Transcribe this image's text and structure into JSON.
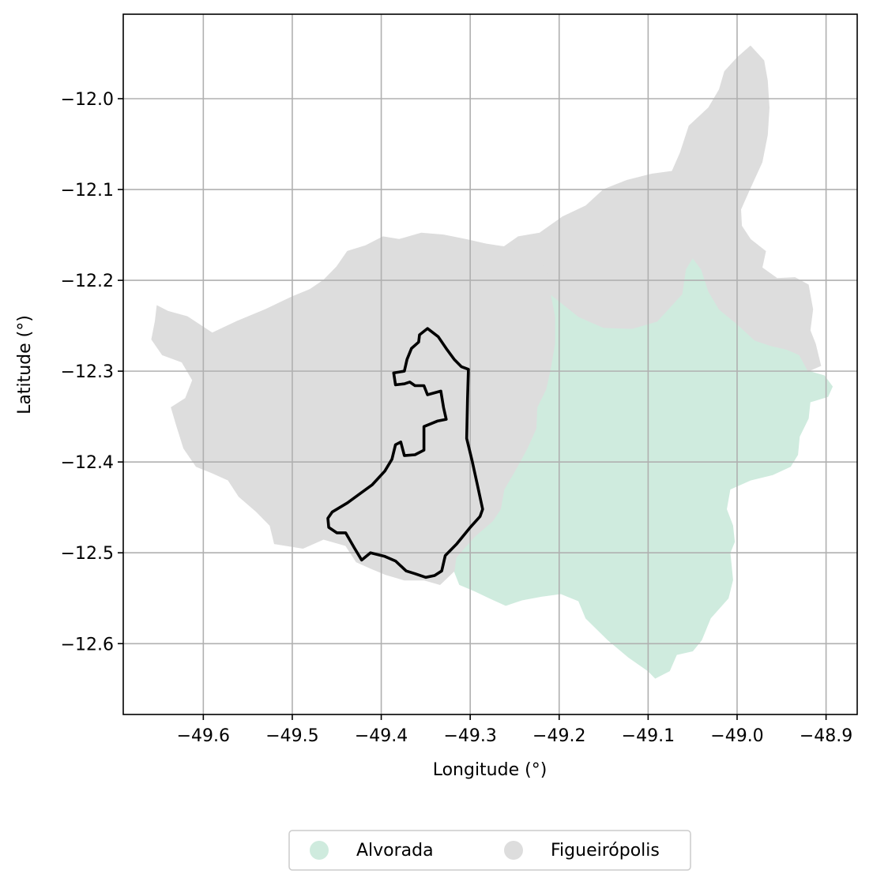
{
  "chart_data": {
    "type": "map",
    "xlabel": "Longitude (°)",
    "ylabel": "Latitude (°)",
    "xlim": [
      -49.69,
      -48.865
    ],
    "ylim": [
      -12.678,
      -11.907
    ],
    "x_ticks": [
      -49.6,
      -49.5,
      -49.4,
      -49.3,
      -49.2,
      -49.1,
      -49.0,
      -48.9
    ],
    "x_tick_labels": [
      "−49.6",
      "−49.5",
      "−49.4",
      "−49.3",
      "−49.2",
      "−49.1",
      "−49.0",
      "−48.9"
    ],
    "y_ticks": [
      -12.0,
      -12.1,
      -12.2,
      -12.3,
      -12.4,
      -12.5,
      -12.6
    ],
    "y_tick_labels": [
      "−12.0",
      "−12.1",
      "−12.2",
      "−12.3",
      "−12.4",
      "−12.5",
      "−12.6"
    ],
    "grid": true,
    "legend_position": "bottom-center",
    "regions": [
      {
        "name": "Alvorada",
        "color": "#cfebde",
        "polygon": [
          [
            -49.216,
            -12.193
          ],
          [
            -49.204,
            -12.207
          ],
          [
            -49.196,
            -12.225
          ],
          [
            -49.178,
            -12.24
          ],
          [
            -49.15,
            -12.252
          ],
          [
            -49.118,
            -12.253
          ],
          [
            -49.09,
            -12.245
          ],
          [
            -49.062,
            -12.215
          ],
          [
            -49.058,
            -12.188
          ],
          [
            -49.05,
            -12.175
          ],
          [
            -49.04,
            -12.188
          ],
          [
            -49.032,
            -12.212
          ],
          [
            -49.02,
            -12.232
          ],
          [
            -49.0,
            -12.248
          ],
          [
            -48.98,
            -12.266
          ],
          [
            -48.962,
            -12.272
          ],
          [
            -48.944,
            -12.276
          ],
          [
            -48.93,
            -12.282
          ],
          [
            -48.92,
            -12.3
          ],
          [
            -48.902,
            -12.305
          ],
          [
            -48.893,
            -12.317
          ],
          [
            -48.898,
            -12.328
          ],
          [
            -48.918,
            -12.334
          ],
          [
            -48.92,
            -12.352
          ],
          [
            -48.93,
            -12.372
          ],
          [
            -48.932,
            -12.392
          ],
          [
            -48.94,
            -12.405
          ],
          [
            -48.96,
            -12.414
          ],
          [
            -48.985,
            -12.42
          ],
          [
            -49.008,
            -12.43
          ],
          [
            -49.012,
            -12.452
          ],
          [
            -49.005,
            -12.47
          ],
          [
            -49.003,
            -12.488
          ],
          [
            -49.008,
            -12.5
          ],
          [
            -49.005,
            -12.53
          ],
          [
            -49.01,
            -12.55
          ],
          [
            -49.03,
            -12.572
          ],
          [
            -49.04,
            -12.596
          ],
          [
            -49.05,
            -12.608
          ],
          [
            -49.068,
            -12.612
          ],
          [
            -49.076,
            -12.63
          ],
          [
            -49.092,
            -12.638
          ],
          [
            -49.1,
            -12.63
          ],
          [
            -49.122,
            -12.615
          ],
          [
            -49.145,
            -12.596
          ],
          [
            -49.17,
            -12.572
          ],
          [
            -49.178,
            -12.553
          ],
          [
            -49.198,
            -12.545
          ],
          [
            -49.22,
            -12.548
          ],
          [
            -49.242,
            -12.552
          ],
          [
            -49.26,
            -12.558
          ],
          [
            -49.278,
            -12.55
          ],
          [
            -49.295,
            -12.542
          ],
          [
            -49.312,
            -12.535
          ],
          [
            -49.318,
            -12.52
          ],
          [
            -49.316,
            -12.505
          ],
          [
            -49.295,
            -12.482
          ],
          [
            -49.275,
            -12.465
          ],
          [
            -49.266,
            -12.452
          ],
          [
            -49.262,
            -12.43
          ],
          [
            -49.25,
            -12.41
          ],
          [
            -49.236,
            -12.385
          ],
          [
            -49.226,
            -12.363
          ],
          [
            -49.225,
            -12.34
          ],
          [
            -49.215,
            -12.32
          ],
          [
            -49.21,
            -12.298
          ],
          [
            -49.205,
            -12.27
          ],
          [
            -49.205,
            -12.24
          ],
          [
            -49.21,
            -12.215
          ]
        ]
      },
      {
        "name": "Figueirópolis",
        "color": "#dddddd",
        "polygon": [
          [
            -49.21,
            -12.216
          ],
          [
            -49.212,
            -12.196
          ],
          [
            -49.22,
            -12.178
          ],
          [
            -49.24,
            -12.168
          ],
          [
            -49.262,
            -12.163
          ],
          [
            -49.282,
            -12.16
          ],
          [
            -49.305,
            -12.155
          ],
          [
            -49.33,
            -12.15
          ],
          [
            -49.355,
            -12.148
          ],
          [
            -49.38,
            -12.155
          ],
          [
            -49.398,
            -12.152
          ],
          [
            -49.418,
            -12.162
          ],
          [
            -49.438,
            -12.168
          ],
          [
            -49.45,
            -12.185
          ],
          [
            -49.465,
            -12.2
          ],
          [
            -49.48,
            -12.21
          ],
          [
            -49.5,
            -12.218
          ],
          [
            -49.53,
            -12.232
          ],
          [
            -49.562,
            -12.245
          ],
          [
            -49.59,
            -12.258
          ],
          [
            -49.618,
            -12.24
          ],
          [
            -49.64,
            -12.234
          ],
          [
            -49.652,
            -12.228
          ],
          [
            -49.654,
            -12.245
          ],
          [
            -49.658,
            -12.265
          ],
          [
            -49.646,
            -12.282
          ],
          [
            -49.624,
            -12.29
          ],
          [
            -49.612,
            -12.31
          ],
          [
            -49.62,
            -12.33
          ],
          [
            -49.636,
            -12.34
          ],
          [
            -49.63,
            -12.36
          ],
          [
            -49.622,
            -12.385
          ],
          [
            -49.608,
            -12.405
          ],
          [
            -49.59,
            -12.412
          ],
          [
            -49.572,
            -12.42
          ],
          [
            -49.56,
            -12.438
          ],
          [
            -49.54,
            -12.455
          ],
          [
            -49.525,
            -12.47
          ],
          [
            -49.52,
            -12.49
          ],
          [
            -49.488,
            -12.495
          ],
          [
            -49.465,
            -12.485
          ],
          [
            -49.44,
            -12.492
          ],
          [
            -49.428,
            -12.51
          ],
          [
            -49.412,
            -12.517
          ],
          [
            -49.395,
            -12.524
          ],
          [
            -49.374,
            -12.53
          ],
          [
            -49.352,
            -12.53
          ],
          [
            -49.334,
            -12.535
          ],
          [
            -49.318,
            -12.52
          ],
          [
            -49.316,
            -12.505
          ],
          [
            -49.295,
            -12.482
          ],
          [
            -49.275,
            -12.465
          ],
          [
            -49.266,
            -12.452
          ],
          [
            -49.262,
            -12.43
          ],
          [
            -49.25,
            -12.41
          ],
          [
            -49.236,
            -12.385
          ],
          [
            -49.226,
            -12.363
          ],
          [
            -49.225,
            -12.34
          ],
          [
            -49.215,
            -12.32
          ],
          [
            -49.21,
            -12.298
          ],
          [
            -49.205,
            -12.27
          ],
          [
            -49.205,
            -12.24
          ],
          [
            -49.21,
            -12.215
          ],
          [
            -49.178,
            -12.24
          ],
          [
            -49.15,
            -12.252
          ],
          [
            -49.118,
            -12.253
          ],
          [
            -49.09,
            -12.245
          ],
          [
            -49.062,
            -12.215
          ],
          [
            -49.058,
            -12.188
          ],
          [
            -49.05,
            -12.175
          ],
          [
            -49.04,
            -12.188
          ],
          [
            -49.032,
            -12.212
          ],
          [
            -49.02,
            -12.232
          ],
          [
            -49.0,
            -12.248
          ],
          [
            -48.98,
            -12.266
          ],
          [
            -48.962,
            -12.272
          ],
          [
            -48.944,
            -12.276
          ],
          [
            -48.93,
            -12.282
          ],
          [
            -48.92,
            -12.3
          ],
          [
            -48.906,
            -12.294
          ],
          [
            -48.912,
            -12.27
          ],
          [
            -48.918,
            -12.255
          ],
          [
            -48.915,
            -12.232
          ],
          [
            -48.92,
            -12.205
          ],
          [
            -48.935,
            -12.197
          ],
          [
            -48.955,
            -12.198
          ],
          [
            -48.972,
            -12.186
          ],
          [
            -48.968,
            -12.168
          ],
          [
            -48.985,
            -12.155
          ],
          [
            -48.995,
            -12.14
          ],
          [
            -48.996,
            -12.122
          ],
          [
            -48.986,
            -12.1
          ],
          [
            -48.972,
            -12.07
          ],
          [
            -48.966,
            -12.04
          ],
          [
            -48.964,
            -12.01
          ],
          [
            -48.966,
            -11.98
          ],
          [
            -48.97,
            -11.958
          ],
          [
            -48.985,
            -11.942
          ],
          [
            -49.0,
            -11.955
          ],
          [
            -49.014,
            -11.97
          ],
          [
            -49.02,
            -11.99
          ],
          [
            -49.032,
            -12.01
          ],
          [
            -49.054,
            -12.03
          ],
          [
            -49.064,
            -12.06
          ],
          [
            -49.073,
            -12.08
          ],
          [
            -49.096,
            -12.083
          ],
          [
            -49.124,
            -12.09
          ],
          [
            -49.15,
            -12.1
          ],
          [
            -49.17,
            -12.118
          ],
          [
            -49.196,
            -12.13
          ],
          [
            -49.222,
            -12.148
          ],
          [
            -49.246,
            -12.152
          ],
          [
            -49.262,
            -12.163
          ],
          [
            -49.24,
            -12.168
          ],
          [
            -49.22,
            -12.178
          ],
          [
            -49.212,
            -12.196
          ]
        ]
      }
    ],
    "outline": {
      "color": "#000000",
      "polygon": [
        [
          -49.348,
          -12.253
        ],
        [
          -49.336,
          -12.262
        ],
        [
          -49.327,
          -12.275
        ],
        [
          -49.318,
          -12.287
        ],
        [
          -49.31,
          -12.295
        ],
        [
          -49.302,
          -12.298
        ],
        [
          -49.303,
          -12.33
        ],
        [
          -49.304,
          -12.374
        ],
        [
          -49.298,
          -12.398
        ],
        [
          -49.292,
          -12.425
        ],
        [
          -49.286,
          -12.452
        ],
        [
          -49.289,
          -12.46
        ],
        [
          -49.3,
          -12.472
        ],
        [
          -49.315,
          -12.49
        ],
        [
          -49.328,
          -12.503
        ],
        [
          -49.332,
          -12.52
        ],
        [
          -49.34,
          -12.525
        ],
        [
          -49.35,
          -12.527
        ],
        [
          -49.362,
          -12.523
        ],
        [
          -49.372,
          -12.52
        ],
        [
          -49.384,
          -12.509
        ],
        [
          -49.396,
          -12.504
        ],
        [
          -49.412,
          -12.5
        ],
        [
          -49.422,
          -12.508
        ],
        [
          -49.43,
          -12.495
        ],
        [
          -49.44,
          -12.478
        ],
        [
          -49.45,
          -12.478
        ],
        [
          -49.459,
          -12.472
        ],
        [
          -49.46,
          -12.462
        ],
        [
          -49.455,
          -12.455
        ],
        [
          -49.438,
          -12.445
        ],
        [
          -49.424,
          -12.435
        ],
        [
          -49.41,
          -12.425
        ],
        [
          -49.396,
          -12.41
        ],
        [
          -49.388,
          -12.397
        ],
        [
          -49.384,
          -12.381
        ],
        [
          -49.378,
          -12.378
        ],
        [
          -49.374,
          -12.393
        ],
        [
          -49.362,
          -12.392
        ],
        [
          -49.352,
          -12.387
        ],
        [
          -49.352,
          -12.361
        ],
        [
          -49.337,
          -12.355
        ],
        [
          -49.327,
          -12.353
        ],
        [
          -49.33,
          -12.34
        ],
        [
          -49.333,
          -12.322
        ],
        [
          -49.348,
          -12.326
        ],
        [
          -49.352,
          -12.316
        ],
        [
          -49.362,
          -12.316
        ],
        [
          -49.368,
          -12.312
        ],
        [
          -49.374,
          -12.314
        ],
        [
          -49.384,
          -12.315
        ],
        [
          -49.386,
          -12.302
        ],
        [
          -49.374,
          -12.3
        ],
        [
          -49.371,
          -12.287
        ],
        [
          -49.366,
          -12.275
        ],
        [
          -49.358,
          -12.268
        ],
        [
          -49.357,
          -12.26
        ]
      ]
    }
  },
  "legend": {
    "items": [
      {
        "label": "Alvorada",
        "color": "#cfebde"
      },
      {
        "label": "Figueirópolis",
        "color": "#dddddd"
      }
    ]
  }
}
